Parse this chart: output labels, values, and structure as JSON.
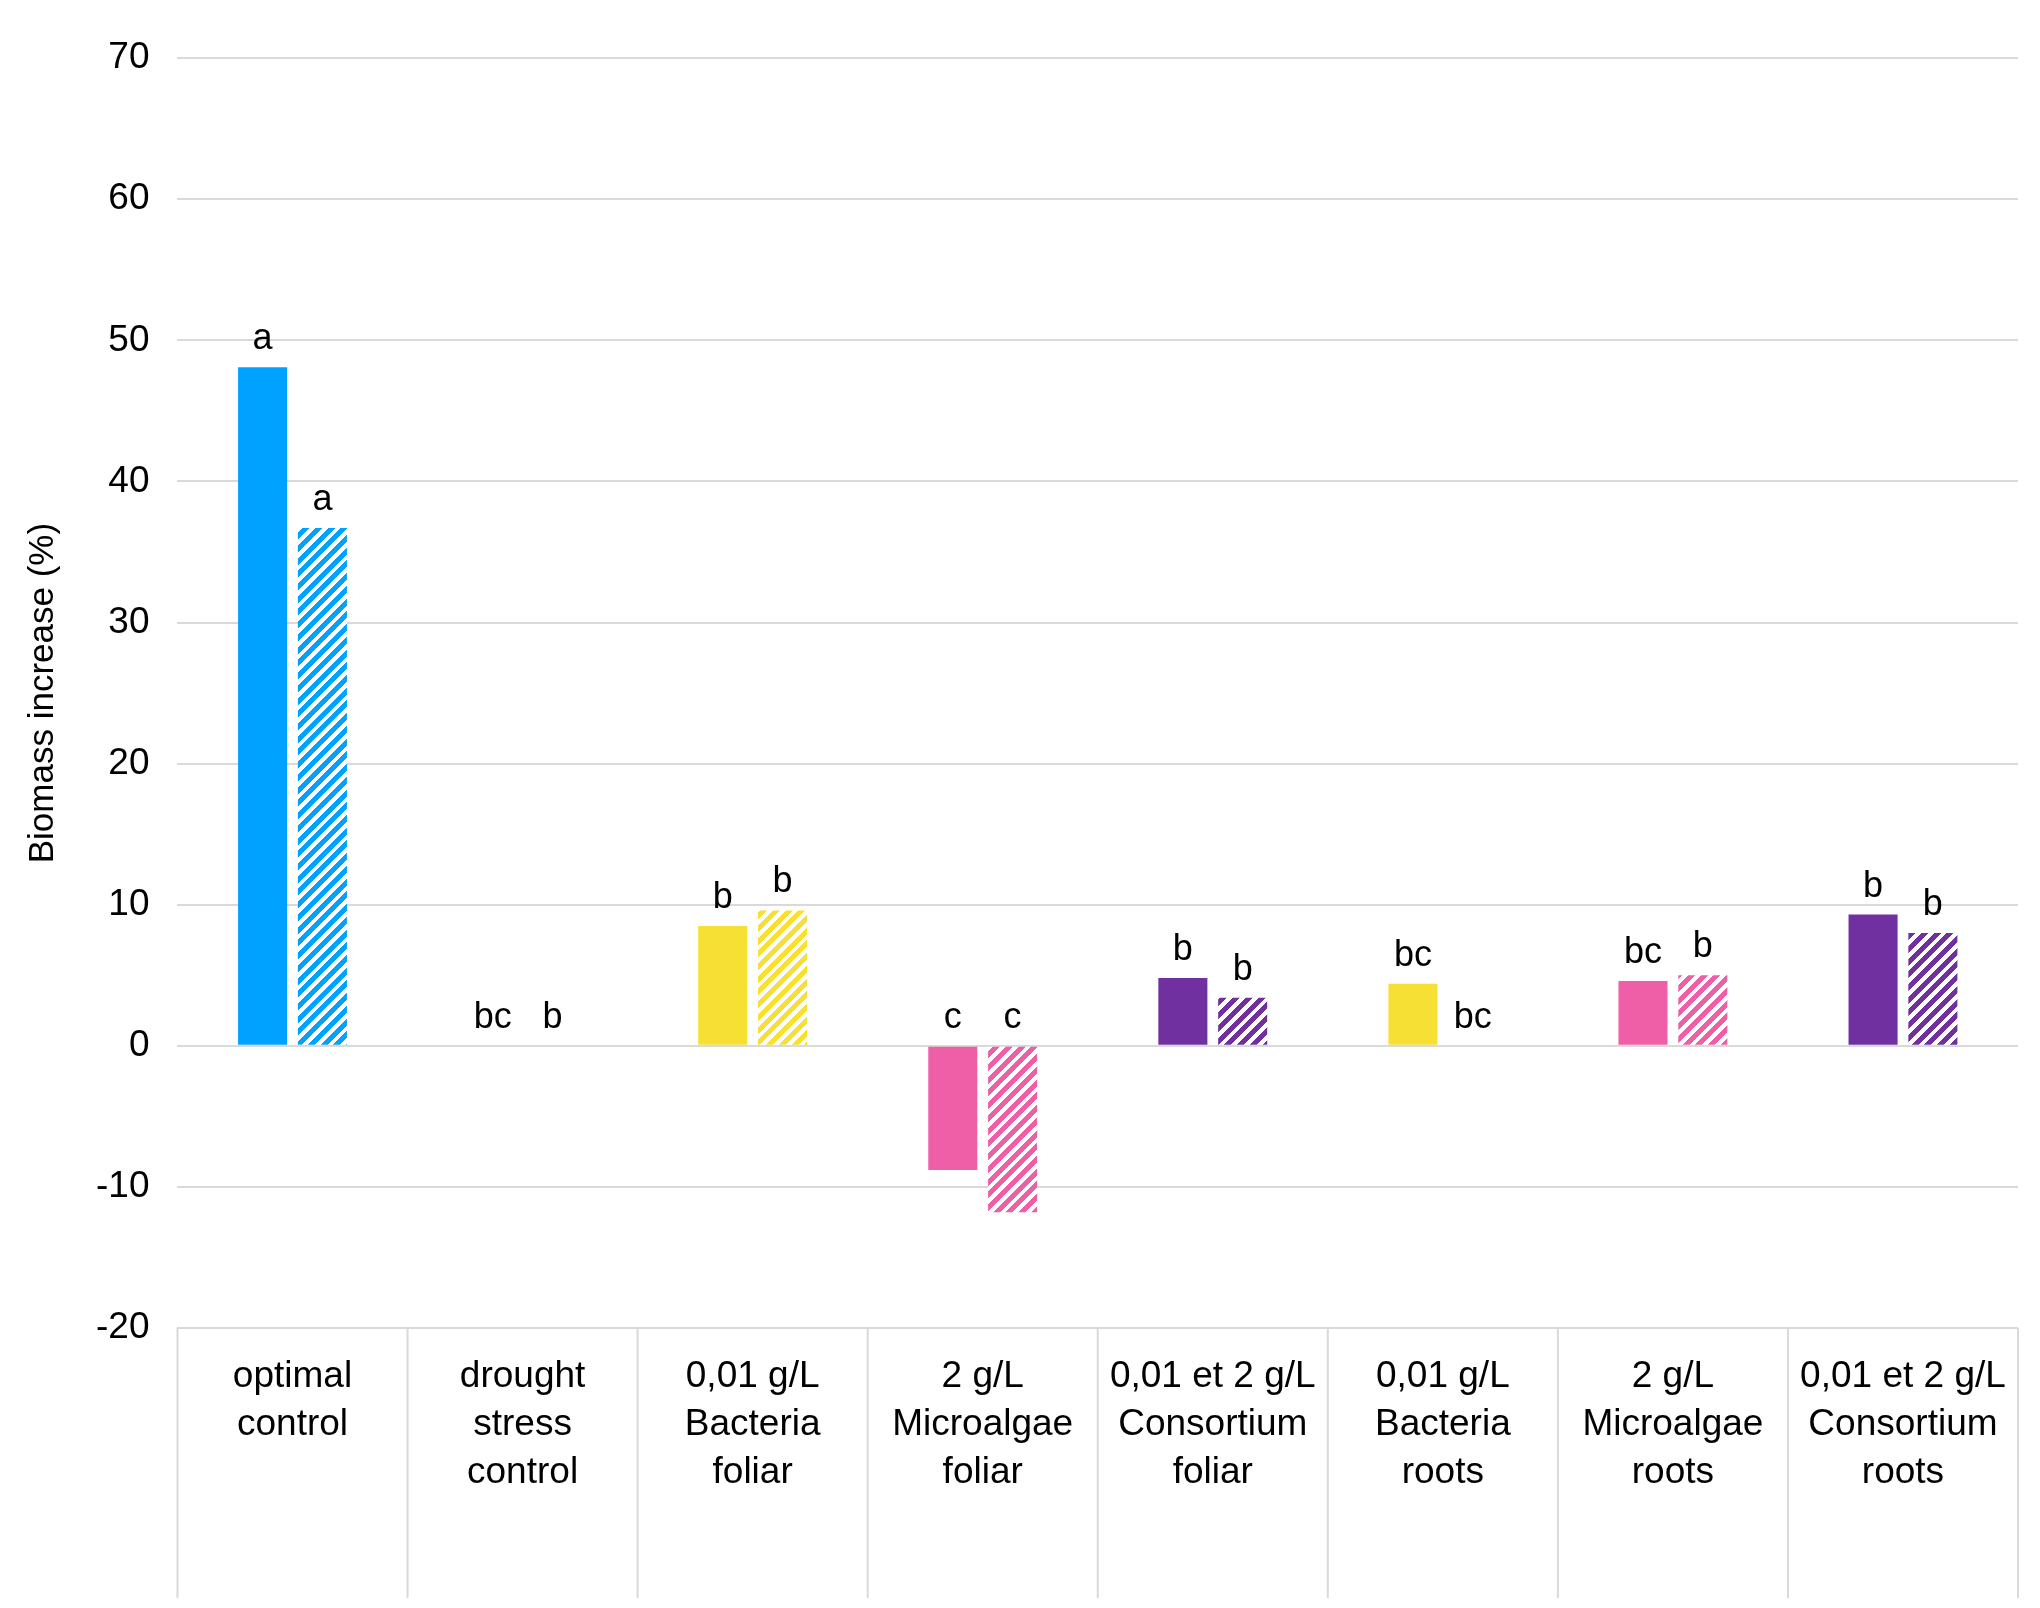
{
  "chart_data": {
    "type": "bar",
    "ylabel": "Biomass increase (%)",
    "categories": [
      "optimal control",
      "drought stress control",
      "0,01 g/L Bacteria foliar",
      "2 g/L Microalgae foliar",
      "0,01 et 2 g/L Consortium foliar",
      "0,01 g/L Bacteria roots",
      "2 g/L Microalgae roots",
      "0,01 et 2 g/L Consortium roots"
    ],
    "series": [
      {
        "colors": [
          "#00a2ff",
          "#00a2ff",
          "#f7e034",
          "#ef5fa7",
          "#7030a0",
          "#f7e034",
          "#ef5fa7",
          "#7030a0"
        ],
        "values": [
          48.1,
          0,
          8.5,
          -8.8,
          4.8,
          4.4,
          4.6,
          9.3
        ],
        "value_labels": [
          "a",
          "bc",
          "b",
          "c",
          "b",
          "bc",
          "bc",
          "b"
        ]
      },
      {
        "colors": [
          "#00a2ff",
          "#00a2ff",
          "#f7e034",
          "#ef5fa7",
          "#7030a0",
          "#f7e034",
          "#ef5fa7",
          "#7030a0"
        ],
        "values": [
          36.7,
          0,
          9.6,
          -11.8,
          3.4,
          0,
          5.0,
          8.0
        ],
        "value_labels": [
          "a",
          "b",
          "b",
          "c",
          "b",
          "bc",
          "b",
          "b"
        ]
      }
    ],
    "ylim": [
      -20,
      70
    ],
    "yticks": [
      -20,
      -10,
      0,
      10,
      20,
      30,
      40,
      50,
      60,
      70
    ],
    "grid": "y",
    "legend": false
  }
}
